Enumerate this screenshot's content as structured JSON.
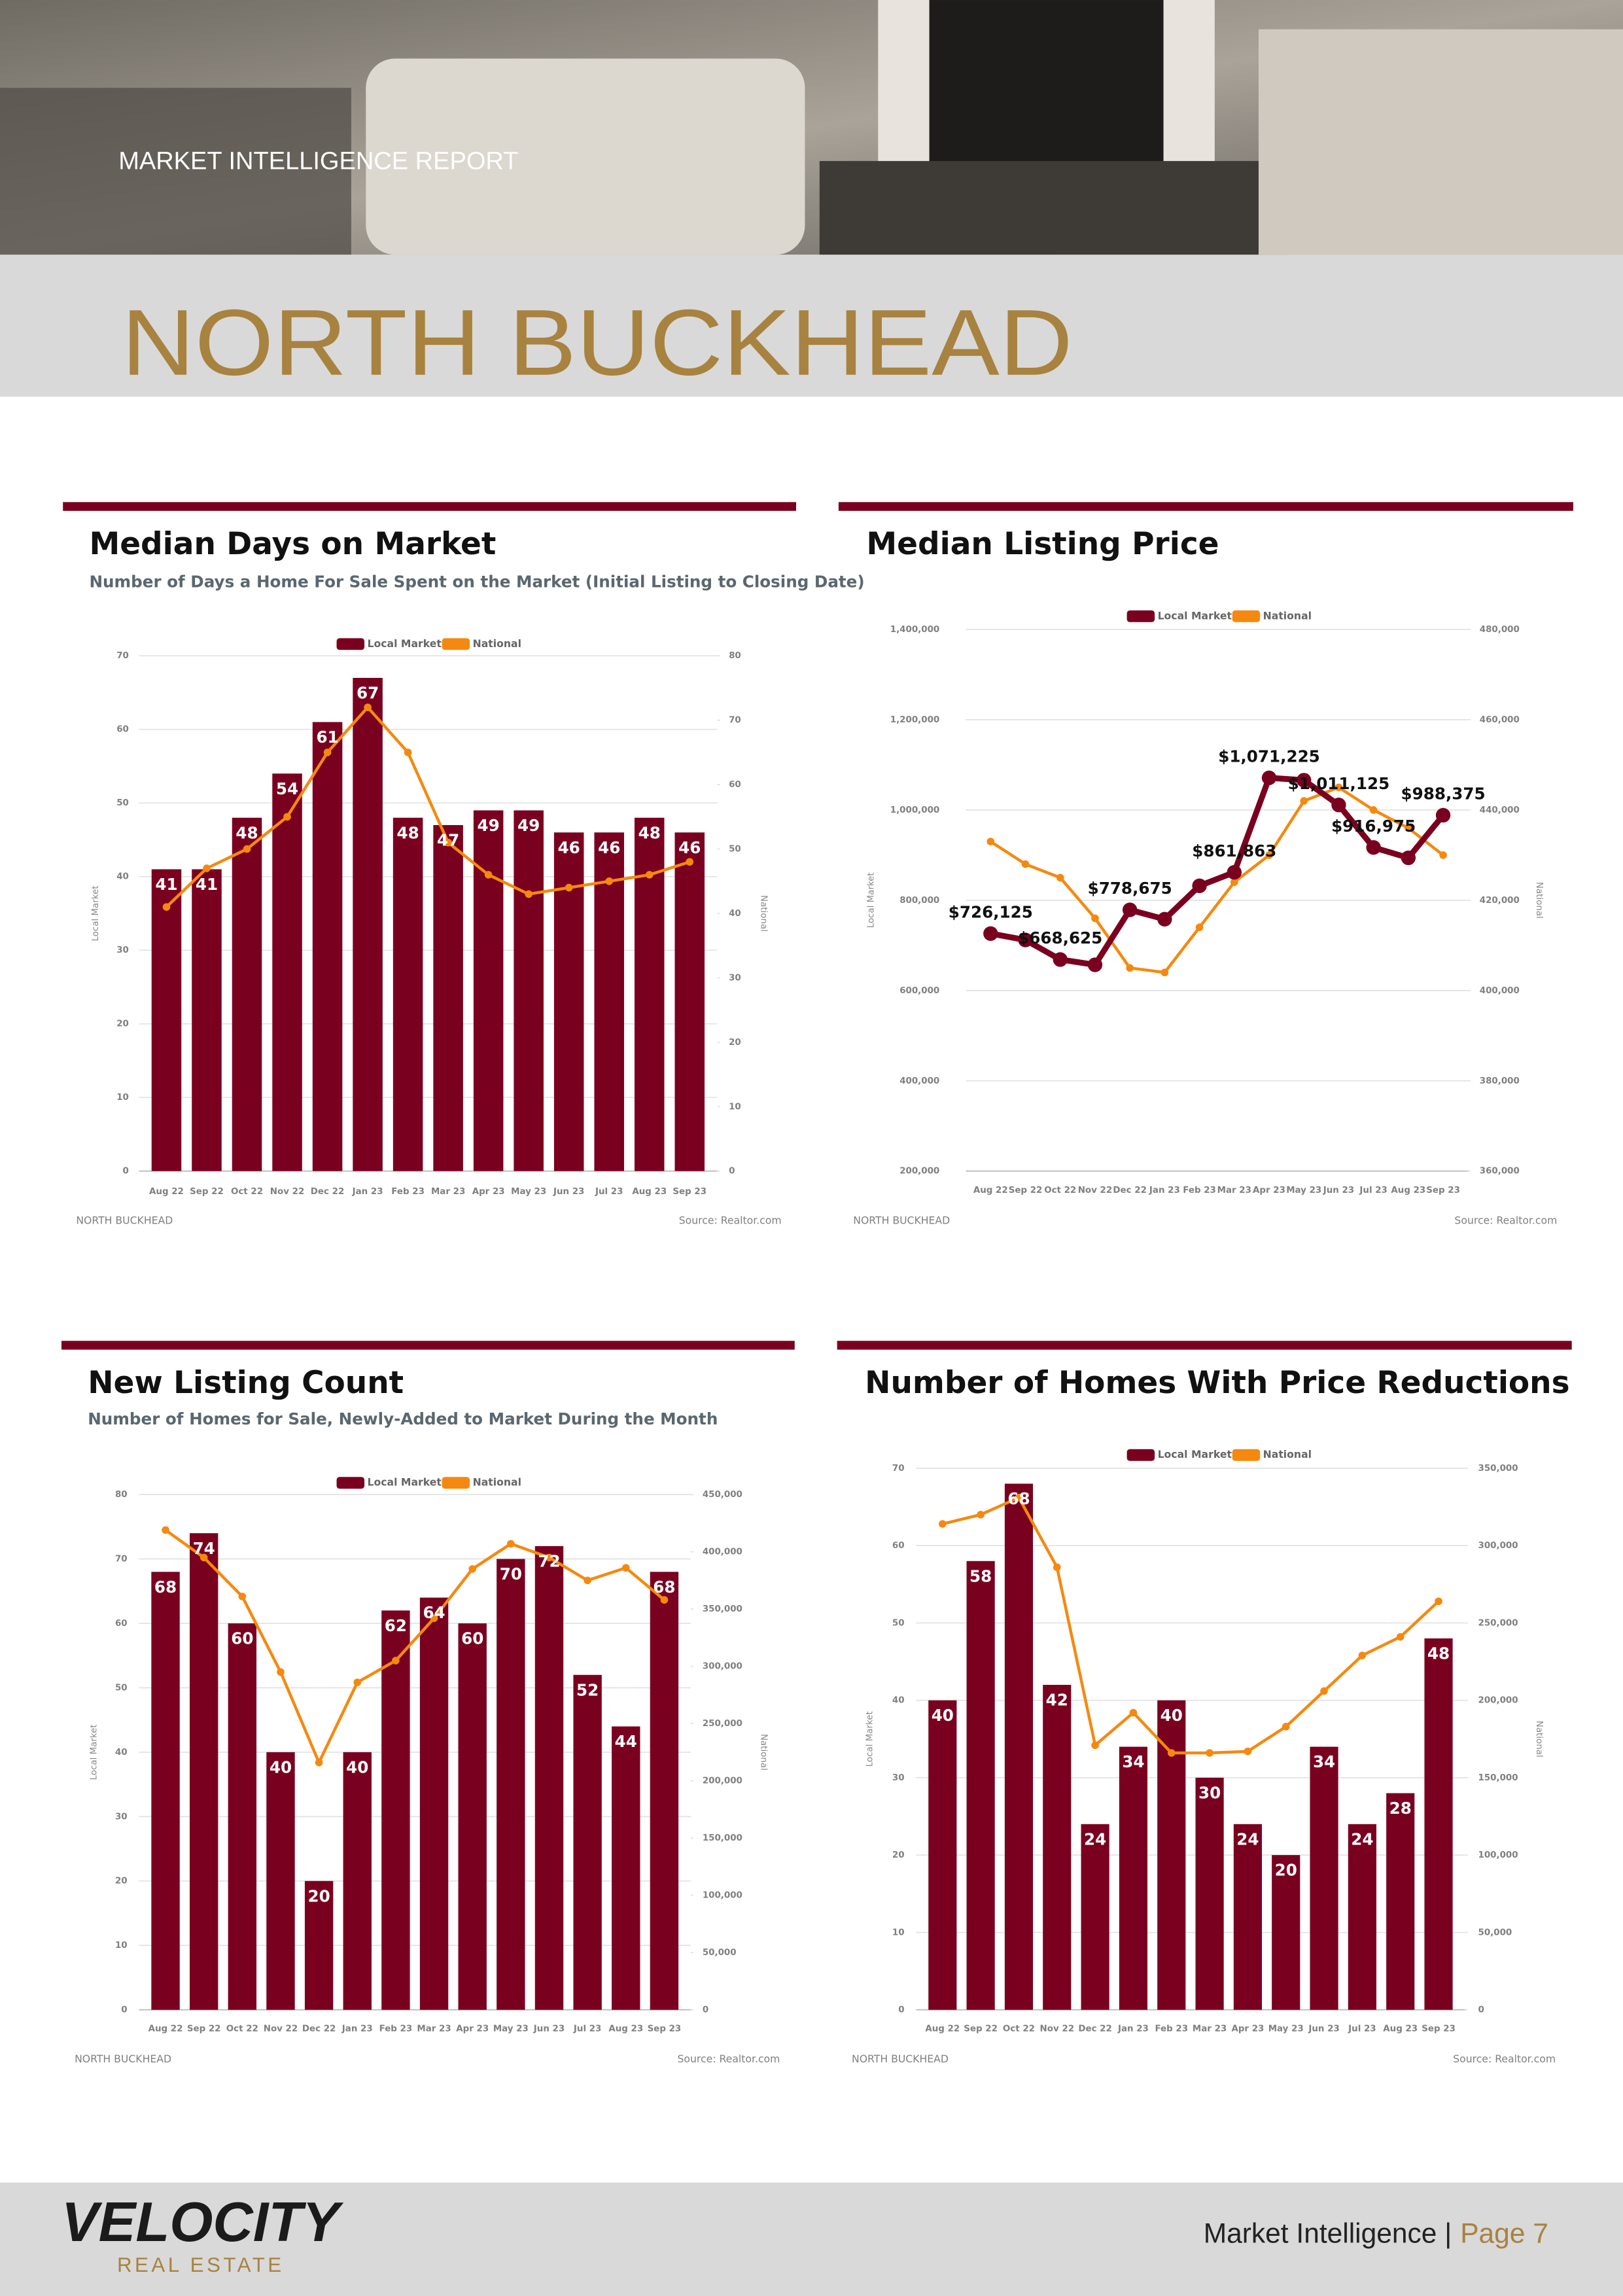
{
  "header": {
    "kicker": "MARKET INTELLIGENCE REPORT",
    "title": "NORTH BUCKHEAD"
  },
  "chart_data": [
    {
      "type": "bar_line",
      "title": "Median Days on Market",
      "subtitle": "Number of Days a Home For Sale Spent on the Market (Initial Listing to Closing Date)",
      "categories": [
        "Aug 22",
        "Sep 22",
        "Oct 22",
        "Nov 22",
        "Dec 22",
        "Jan 23",
        "Feb 23",
        "Mar 23",
        "Apr 23",
        "May 23",
        "Jun 23",
        "Jul 23",
        "Aug 23",
        "Sep 23"
      ],
      "series": [
        {
          "name": "Local Market",
          "color": "#7a0020",
          "axis": "y",
          "values": [
            41,
            41,
            48,
            54,
            61,
            67,
            48,
            47,
            49,
            49,
            46,
            46,
            48,
            46
          ]
        },
        {
          "name": "National",
          "color": "#f5890f",
          "axis": "y2",
          "values": [
            41,
            47,
            50,
            55,
            65,
            72,
            65,
            51,
            46,
            43,
            44,
            45,
            46,
            48
          ]
        }
      ],
      "y_label": "Local Market",
      "y2_label": "National",
      "ylim": [
        0,
        70
      ],
      "yticks": [
        0,
        10,
        20,
        30,
        40,
        50,
        60,
        70
      ],
      "y2lim": [
        0,
        80
      ],
      "y2ticks": [
        0,
        10,
        20,
        30,
        40,
        50,
        60,
        70,
        80
      ],
      "grid": true,
      "legend": "top",
      "region": "NORTH BUCKHEAD",
      "source": "Source: Realtor.com"
    },
    {
      "type": "line",
      "title": "Median Listing Price",
      "categories": [
        "Aug 22",
        "Sep 22",
        "Oct 22",
        "Nov 22",
        "Dec 22",
        "Jan 23",
        "Feb 23",
        "Mar 23",
        "Apr 23",
        "May 23",
        "Jun 23",
        "Jul 23",
        "Aug 23",
        "Sep 23"
      ],
      "series": [
        {
          "name": "Local Market",
          "color": "#7a0020",
          "axis": "y",
          "values": [
            726125,
            712000,
            668625,
            657000,
            778675,
            758000,
            832000,
            861863,
            1071225,
            1066000,
            1011125,
            916975,
            894000,
            988375
          ],
          "value_labels": [
            "$726,125",
            null,
            "$668,625",
            null,
            "$778,675",
            null,
            null,
            "$861,863",
            "$1,071,225",
            null,
            "$1,011,125",
            "$916,975",
            null,
            "$988,375"
          ]
        },
        {
          "name": "National",
          "color": "#f5890f",
          "axis": "y2",
          "values": [
            433000,
            428000,
            425000,
            416000,
            405000,
            404000,
            414000,
            424000,
            430000,
            442000,
            445000,
            440000,
            436000,
            430000
          ]
        }
      ],
      "y_label": "Local Market",
      "y2_label": "National",
      "ylim": [
        200000,
        1400000
      ],
      "yticks": [
        {
          "value": 200000,
          "label": "200,000"
        },
        {
          "value": 400000,
          "label": "400,000"
        },
        {
          "value": 600000,
          "label": "600,000"
        },
        {
          "value": 800000,
          "label": "800,000"
        },
        {
          "value": 1000000,
          "label": "1,000,000"
        },
        {
          "value": 1200000,
          "label": "1,200,000"
        },
        {
          "value": 1400000,
          "label": "1,400,000"
        }
      ],
      "y2lim": [
        360000,
        480000
      ],
      "y2ticks": [
        {
          "value": 360000,
          "label": "360,000"
        },
        {
          "value": 380000,
          "label": "380,000"
        },
        {
          "value": 400000,
          "label": "400,000"
        },
        {
          "value": 420000,
          "label": "420,000"
        },
        {
          "value": 440000,
          "label": "440,000"
        },
        {
          "value": 460000,
          "label": "460,000"
        },
        {
          "value": 480000,
          "label": "480,000"
        }
      ],
      "grid": true,
      "legend": "top",
      "region": "NORTH BUCKHEAD",
      "source": "Source: Realtor.com"
    },
    {
      "type": "bar_line",
      "title": "New Listing Count",
      "subtitle": "Number of Homes for Sale, Newly-Added to Market During the Month",
      "categories": [
        "Aug 22",
        "Sep 22",
        "Oct 22",
        "Nov 22",
        "Dec 22",
        "Jan 23",
        "Feb 23",
        "Mar 23",
        "Apr 23",
        "May 23",
        "Jun 23",
        "Jul 23",
        "Aug 23",
        "Sep 23"
      ],
      "series": [
        {
          "name": "Local Market",
          "color": "#7a0020",
          "axis": "y",
          "values": [
            68,
            74,
            60,
            40,
            20,
            40,
            62,
            64,
            60,
            70,
            72,
            52,
            44,
            68
          ]
        },
        {
          "name": "National",
          "color": "#f5890f",
          "axis": "y2",
          "values": [
            419000,
            395000,
            361000,
            295000,
            216000,
            286000,
            305000,
            342000,
            385000,
            407000,
            395000,
            375000,
            386000,
            358000
          ]
        }
      ],
      "y_label": "Local Market",
      "y2_label": "National",
      "ylim": [
        0,
        80
      ],
      "yticks": [
        0,
        10,
        20,
        30,
        40,
        50,
        60,
        70,
        80
      ],
      "y2lim": [
        0,
        450000
      ],
      "y2ticks": [
        0,
        {
          "value": 50000,
          "label": "50,000"
        },
        {
          "value": 100000,
          "label": "100,000"
        },
        {
          "value": 150000,
          "label": "150,000"
        },
        {
          "value": 200000,
          "label": "200,000"
        },
        {
          "value": 250000,
          "label": "250,000"
        },
        {
          "value": 300000,
          "label": "300,000"
        },
        {
          "value": 350000,
          "label": "350,000"
        },
        {
          "value": 400000,
          "label": "400,000"
        },
        {
          "value": 450000,
          "label": "450,000"
        }
      ],
      "grid": true,
      "legend": "top",
      "region": "NORTH BUCKHEAD",
      "source": "Source: Realtor.com"
    },
    {
      "type": "bar_line",
      "title": "Number of Homes With Price Reductions",
      "categories": [
        "Aug 22",
        "Sep 22",
        "Oct 22",
        "Nov 22",
        "Dec 22",
        "Jan 23",
        "Feb 23",
        "Mar 23",
        "Apr 23",
        "May 23",
        "Jun 23",
        "Jul 23",
        "Aug 23",
        "Sep 23"
      ],
      "series": [
        {
          "name": "Local Market",
          "color": "#7a0020",
          "axis": "y",
          "values": [
            40,
            58,
            68,
            42,
            24,
            34,
            40,
            30,
            24,
            20,
            34,
            24,
            28,
            48
          ]
        },
        {
          "name": "National",
          "color": "#f5890f",
          "axis": "y2",
          "values": [
            314000,
            320000,
            331000,
            286000,
            171000,
            192000,
            166000,
            166000,
            167000,
            183000,
            206000,
            229000,
            241000,
            264000
          ]
        }
      ],
      "y_label": "Local Market",
      "y2_label": "National",
      "ylim": [
        0,
        70
      ],
      "yticks": [
        0,
        10,
        20,
        30,
        40,
        50,
        60,
        70
      ],
      "y2lim": [
        0,
        350000
      ],
      "y2ticks": [
        0,
        {
          "value": 50000,
          "label": "50,000"
        },
        {
          "value": 100000,
          "label": "100,000"
        },
        {
          "value": 150000,
          "label": "150,000"
        },
        {
          "value": 200000,
          "label": "200,000"
        },
        {
          "value": 250000,
          "label": "250,000"
        },
        {
          "value": 300000,
          "label": "300,000"
        },
        {
          "value": 350000,
          "label": "350,000"
        }
      ],
      "grid": true,
      "legend": "top",
      "region": "NORTH BUCKHEAD",
      "source": "Source: Realtor.com"
    }
  ],
  "footer": {
    "brand": "VELOCITY",
    "brand_sub": "REAL ESTATE",
    "section": "Market Intelligence |",
    "page": "Page 7"
  }
}
